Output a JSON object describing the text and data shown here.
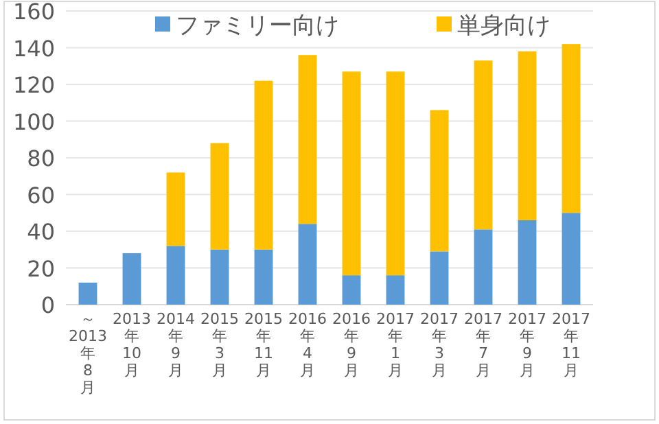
{
  "chart_data": {
    "type": "bar",
    "stacked": true,
    "categories": [
      "～2013年8月",
      "2013年10月",
      "2014年9月",
      "2015年3月",
      "2015年11月",
      "2016年4月",
      "2016年9月",
      "2017年1月",
      "2017年3月",
      "2017年7月",
      "2017年9月",
      "2017年11月"
    ],
    "series": [
      {
        "name": "ファミリー向け",
        "color": "#5b9bd5",
        "values": [
          12,
          28,
          32,
          30,
          30,
          44,
          16,
          16,
          29,
          41,
          46,
          50
        ]
      },
      {
        "name": "単身向け",
        "color": "#ffc000",
        "values": [
          null,
          null,
          40,
          58,
          92,
          92,
          111,
          111,
          77,
          92,
          92,
          92
        ]
      }
    ],
    "ylim": [
      0,
      160
    ],
    "yticks": [
      0,
      20,
      40,
      60,
      80,
      100,
      120,
      140,
      160
    ],
    "grid": "y",
    "legend": "top"
  }
}
